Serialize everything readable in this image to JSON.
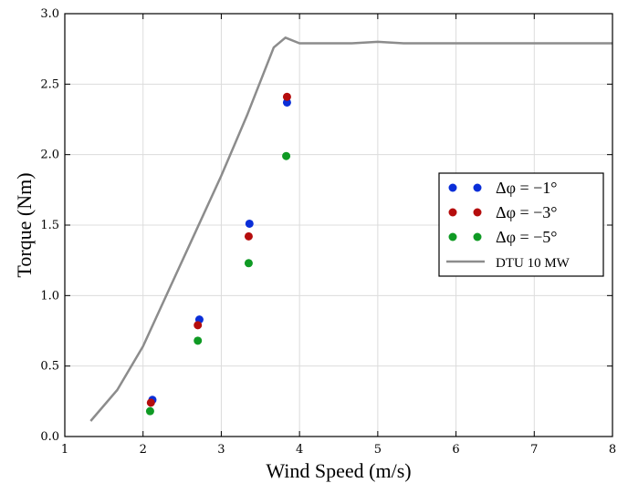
{
  "chart_data": {
    "type": "scatter",
    "title": "",
    "xlabel": "Wind Speed (m/s)",
    "ylabel": "Torque (Nm)",
    "xlim": [
      1,
      8
    ],
    "ylim": [
      0.0,
      3.0
    ],
    "xticks": [
      "1",
      "2",
      "3",
      "4",
      "5",
      "6",
      "7",
      "8"
    ],
    "yticks": [
      "0.0",
      "0.5",
      "1.0",
      "1.5",
      "2.0",
      "2.5",
      "3.0"
    ],
    "grid": true,
    "legend_position": "center-right",
    "series": [
      {
        "name": "Δφ = −1°",
        "type": "scatter",
        "color": "#0a2ed8",
        "points": [
          [
            2.12,
            0.26
          ],
          [
            2.72,
            0.83
          ],
          [
            3.36,
            1.51
          ],
          [
            3.84,
            2.37
          ]
        ]
      },
      {
        "name": "Δφ = −3°",
        "type": "scatter",
        "color": "#b50d0d",
        "points": [
          [
            2.1,
            0.24
          ],
          [
            2.7,
            0.79
          ],
          [
            3.35,
            1.42
          ],
          [
            3.84,
            2.41
          ]
        ]
      },
      {
        "name": "Δφ = −5°",
        "type": "scatter",
        "color": "#0f9a24",
        "points": [
          [
            2.09,
            0.18
          ],
          [
            2.7,
            0.68
          ],
          [
            3.35,
            1.23
          ],
          [
            3.83,
            1.99
          ]
        ]
      },
      {
        "name": "DTU 10 MW",
        "type": "line",
        "color": "#8c8c8c",
        "points": [
          [
            1.33,
            0.11
          ],
          [
            1.67,
            0.33
          ],
          [
            2.0,
            0.64
          ],
          [
            2.33,
            1.04
          ],
          [
            2.67,
            1.45
          ],
          [
            3.0,
            1.85
          ],
          [
            3.33,
            2.28
          ],
          [
            3.67,
            2.76
          ],
          [
            3.82,
            2.83
          ],
          [
            4.0,
            2.79
          ],
          [
            4.33,
            2.79
          ],
          [
            4.67,
            2.79
          ],
          [
            5.0,
            2.8
          ],
          [
            5.33,
            2.79
          ],
          [
            5.67,
            2.79
          ],
          [
            6.0,
            2.79
          ],
          [
            6.33,
            2.79
          ],
          [
            6.67,
            2.79
          ],
          [
            7.0,
            2.79
          ],
          [
            7.33,
            2.79
          ],
          [
            7.67,
            2.79
          ],
          [
            8.0,
            2.79
          ]
        ]
      }
    ]
  },
  "legend": {
    "items": [
      {
        "label": "Δφ = −1°",
        "color": "#0a2ed8",
        "kind": "marker"
      },
      {
        "label": "Δφ = −3°",
        "color": "#b50d0d",
        "kind": "marker"
      },
      {
        "label": "Δφ = −5°",
        "color": "#0f9a24",
        "kind": "marker"
      },
      {
        "label": "DTU 10 MW",
        "color": "#8c8c8c",
        "kind": "line"
      }
    ]
  }
}
